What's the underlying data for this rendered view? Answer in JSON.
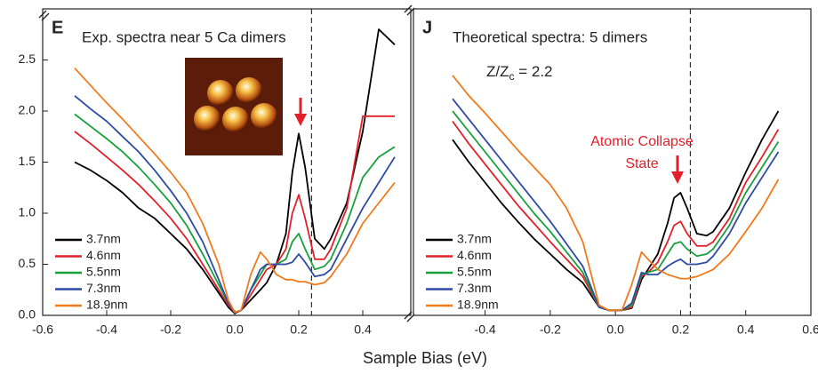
{
  "chart_data": [
    {
      "type": "line",
      "panel_label": "E",
      "title": "Exp. spectra near 5 Ca dimers",
      "xlabel": "Sample Bias (eV)",
      "x": [
        -0.5,
        -0.45,
        -0.4,
        -0.35,
        -0.3,
        -0.25,
        -0.2,
        -0.15,
        -0.1,
        -0.05,
        -0.02,
        0,
        0.02,
        0.05,
        0.08,
        0.1,
        0.13,
        0.16,
        0.18,
        0.2,
        0.22,
        0.25,
        0.28,
        0.3,
        0.35,
        0.4,
        0.45,
        0.5
      ],
      "series": [
        {
          "name": "3.7nm",
          "color": "#000000",
          "values": [
            1.5,
            1.42,
            1.32,
            1.2,
            1.05,
            0.95,
            0.8,
            0.65,
            0.45,
            0.22,
            0.08,
            0.02,
            0.05,
            0.15,
            0.25,
            0.32,
            0.5,
            0.8,
            1.4,
            1.78,
            1.45,
            0.75,
            0.65,
            0.75,
            1.1,
            1.8,
            2.8,
            2.65
          ]
        },
        {
          "name": "4.6nm",
          "color": "#e3202a",
          "values": [
            1.8,
            1.68,
            1.55,
            1.42,
            1.28,
            1.12,
            0.95,
            0.75,
            0.5,
            0.25,
            0.1,
            0.03,
            0.05,
            0.2,
            0.35,
            0.45,
            0.5,
            0.65,
            1.0,
            1.18,
            0.95,
            0.55,
            0.55,
            0.65,
            1.05,
            1.95,
            1.95,
            1.95
          ]
        },
        {
          "name": "5.5nm",
          "color": "#17a03c",
          "values": [
            1.97,
            1.85,
            1.73,
            1.6,
            1.45,
            1.28,
            1.1,
            0.88,
            0.6,
            0.3,
            0.12,
            0.03,
            0.05,
            0.25,
            0.4,
            0.5,
            0.5,
            0.55,
            0.72,
            0.8,
            0.65,
            0.45,
            0.48,
            0.55,
            0.9,
            1.35,
            1.55,
            1.65
          ]
        },
        {
          "name": "7.3nm",
          "color": "#2d4ba3",
          "values": [
            2.15,
            2.02,
            1.9,
            1.75,
            1.6,
            1.42,
            1.22,
            1.0,
            0.72,
            0.35,
            0.12,
            0.03,
            0.05,
            0.25,
            0.45,
            0.5,
            0.5,
            0.5,
            0.52,
            0.6,
            0.52,
            0.38,
            0.4,
            0.45,
            0.75,
            1.05,
            1.3,
            1.55
          ]
        },
        {
          "name": "18.9nm",
          "color": "#f07a1c",
          "values": [
            2.42,
            2.25,
            2.08,
            1.92,
            1.75,
            1.58,
            1.4,
            1.2,
            0.9,
            0.5,
            0.15,
            0.03,
            0.05,
            0.4,
            0.62,
            0.55,
            0.4,
            0.35,
            0.35,
            0.33,
            0.33,
            0.3,
            0.32,
            0.38,
            0.6,
            0.9,
            1.1,
            1.3
          ]
        }
      ],
      "xlim": [
        -0.6,
        0.55
      ],
      "ylim": [
        0,
        3.0
      ],
      "xticks": [
        -0.6,
        -0.4,
        -0.2,
        {
          "value": 0,
          "label": "0.0"
        },
        0.2,
        0.4
      ],
      "yticks": [
        {
          "value": 0,
          "label": "0.0"
        },
        0.5,
        {
          "value": 1,
          "label": "1.0"
        },
        1.5,
        {
          "value": 2,
          "label": "2.0"
        },
        2.5
      ],
      "vline": 0.24,
      "legend": "lower left"
    },
    {
      "type": "line",
      "panel_label": "J",
      "title": "Theoretical spectra: 5 dimers",
      "annotation_parts": [
        "Z/Z",
        "c",
        " = 2.2"
      ],
      "arrow_label": [
        "Atomic Collapse",
        "State"
      ],
      "x": [
        -0.5,
        -0.45,
        -0.4,
        -0.35,
        -0.3,
        -0.25,
        -0.2,
        -0.15,
        -0.1,
        -0.05,
        -0.02,
        0,
        0.02,
        0.05,
        0.08,
        0.1,
        0.13,
        0.16,
        0.18,
        0.2,
        0.22,
        0.25,
        0.28,
        0.3,
        0.35,
        0.4,
        0.45,
        0.5
      ],
      "series": [
        {
          "name": "3.7nm",
          "color": "#000000",
          "values": [
            1.72,
            1.5,
            1.3,
            1.1,
            0.92,
            0.75,
            0.6,
            0.45,
            0.32,
            0.08,
            0.05,
            0.05,
            0.05,
            0.07,
            0.35,
            0.45,
            0.6,
            0.9,
            1.15,
            1.2,
            1.05,
            0.8,
            0.78,
            0.82,
            1.05,
            1.4,
            1.72,
            2.0
          ]
        },
        {
          "name": "4.6nm",
          "color": "#e3202a",
          "values": [
            1.9,
            1.68,
            1.48,
            1.28,
            1.08,
            0.9,
            0.72,
            0.55,
            0.38,
            0.08,
            0.05,
            0.05,
            0.05,
            0.08,
            0.38,
            0.42,
            0.52,
            0.72,
            0.88,
            0.92,
            0.8,
            0.68,
            0.68,
            0.72,
            0.95,
            1.3,
            1.55,
            1.82
          ]
        },
        {
          "name": "5.5nm",
          "color": "#17a03c",
          "values": [
            2.0,
            1.8,
            1.6,
            1.4,
            1.2,
            1.0,
            0.82,
            0.62,
            0.42,
            0.08,
            0.05,
            0.05,
            0.05,
            0.1,
            0.4,
            0.42,
            0.45,
            0.6,
            0.7,
            0.72,
            0.65,
            0.58,
            0.6,
            0.65,
            0.88,
            1.2,
            1.45,
            1.7
          ]
        },
        {
          "name": "7.3nm",
          "color": "#2d4ba3",
          "values": [
            2.12,
            1.92,
            1.72,
            1.52,
            1.32,
            1.12,
            0.92,
            0.7,
            0.48,
            0.08,
            0.05,
            0.05,
            0.05,
            0.12,
            0.42,
            0.4,
            0.4,
            0.48,
            0.52,
            0.55,
            0.5,
            0.5,
            0.52,
            0.58,
            0.8,
            1.1,
            1.35,
            1.6
          ]
        },
        {
          "name": "18.9nm",
          "color": "#f07a1c",
          "values": [
            2.35,
            2.15,
            1.98,
            1.8,
            1.62,
            1.45,
            1.28,
            1.05,
            0.72,
            0.1,
            0.05,
            0.05,
            0.05,
            0.3,
            0.62,
            0.55,
            0.45,
            0.4,
            0.38,
            0.36,
            0.36,
            0.38,
            0.42,
            0.45,
            0.6,
            0.82,
            1.05,
            1.33
          ]
        }
      ],
      "xlim": [
        -0.62,
        0.6
      ],
      "ylim": [
        0,
        3.0
      ],
      "xticks": [
        -0.4,
        -0.2,
        {
          "value": 0,
          "label": "0.0"
        },
        0.2,
        0.4,
        0.6
      ],
      "vline": 0.23,
      "legend": "lower left"
    }
  ]
}
